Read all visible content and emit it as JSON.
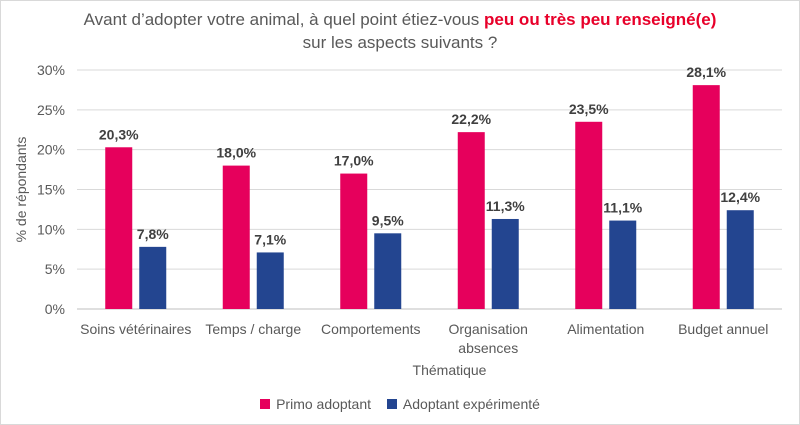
{
  "title": {
    "prefix": "Avant d’adopter votre animal, à quel point étiez-vous ",
    "highlight": "peu ou très peu renseigné(e)",
    "line2": "sur les aspects suivants ?"
  },
  "colors": {
    "primo": "#e6005c",
    "experimente": "#234590",
    "highlight": "#e8002a"
  },
  "chart_data": {
    "type": "bar",
    "categories": [
      [
        "Soins vétérinaires"
      ],
      [
        "Temps / charge"
      ],
      [
        "Comportements"
      ],
      [
        "Organisation",
        "absences"
      ],
      [
        "Alimentation"
      ],
      [
        "Budget annuel"
      ]
    ],
    "series": [
      {
        "name": "Primo adoptant",
        "values": [
          20.3,
          18.0,
          17.0,
          22.2,
          23.5,
          28.1
        ],
        "labels": [
          "20,3%",
          "18,0%",
          "17,0%",
          "22,2%",
          "23,5%",
          "28,1%"
        ]
      },
      {
        "name": "Adoptant expérimenté",
        "values": [
          7.8,
          7.1,
          9.5,
          11.3,
          11.1,
          12.4
        ],
        "labels": [
          "7,8%",
          "7,1%",
          "9,5%",
          "11,3%",
          "11,1%",
          "12,4%"
        ]
      }
    ],
    "yticks": [
      "0%",
      "5%",
      "10%",
      "15%",
      "20%",
      "25%",
      "30%"
    ],
    "ylim": [
      0,
      30
    ],
    "xlabel": "Thématique",
    "ylabel": "% de répondants",
    "grid": true,
    "legend_position": "bottom"
  }
}
